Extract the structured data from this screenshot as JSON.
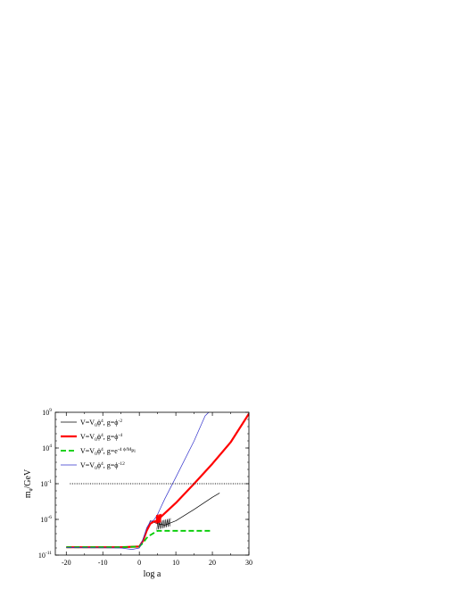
{
  "chart_data": {
    "type": "line",
    "xlabel": "log a",
    "ylabel": "m",
    "ylabel_subscript": "ϕ",
    "ylabel_unit": "/GeV",
    "xlim": [
      -23,
      30
    ],
    "ylim_log10": [
      -11,
      9
    ],
    "y_scale": "log",
    "grid": false,
    "legend_position": "top-left",
    "x_ticks": [
      -20,
      -10,
      0,
      10,
      20,
      30
    ],
    "x_tick_labels": [
      "-20",
      "-10",
      "0",
      "10",
      "20",
      "30"
    ],
    "y_ticks_log10": [
      -11,
      -6,
      -1,
      4,
      9
    ],
    "y_tick_labels": [
      {
        "base": "10",
        "exp": "-11"
      },
      {
        "base": "10",
        "exp": "-6"
      },
      {
        "base": "10",
        "exp": "-1"
      },
      {
        "base": "10",
        "exp": "4"
      },
      {
        "base": "10",
        "exp": "9"
      }
    ],
    "series": [
      {
        "legend": {
          "v": "V=V",
          "v_sub": "0",
          "phi": "ϕ",
          "phi_exp": "4",
          "g": ", g=ϕ",
          "g_exp": "-2"
        },
        "color": "#000000",
        "style": "solid-thin",
        "points_log10": [
          [
            -20,
            -9.9
          ],
          [
            -5,
            -9.9
          ],
          [
            0,
            -9.75
          ],
          [
            1,
            -9.0
          ],
          [
            2,
            -7.5
          ],
          [
            3,
            -6.2
          ],
          [
            5,
            -6.6
          ],
          [
            7,
            -6.8
          ],
          [
            10,
            -6.2
          ],
          [
            15,
            -4.6
          ],
          [
            20,
            -2.9
          ],
          [
            22,
            -2.3
          ]
        ]
      },
      {
        "legend": {
          "v": "V=V",
          "v_sub": "0",
          "phi": "ϕ",
          "phi_exp": "4",
          "g": ", g=ϕ",
          "g_exp": "-4"
        },
        "color": "#ff0000",
        "style": "solid-thick",
        "points_log10": [
          [
            -20,
            -9.9
          ],
          [
            -5,
            -9.9
          ],
          [
            0,
            -9.8
          ],
          [
            1,
            -9.0
          ],
          [
            2,
            -7.6
          ],
          [
            3,
            -6.6
          ],
          [
            4,
            -6.3
          ],
          [
            5,
            -6.2
          ],
          [
            6,
            -5.6
          ],
          [
            10,
            -3.7
          ],
          [
            15,
            -1.0
          ],
          [
            20,
            1.8
          ],
          [
            25,
            4.8
          ],
          [
            30,
            8.8
          ]
        ]
      },
      {
        "legend": {
          "v": "V=V",
          "v_sub": "0",
          "phi": "ϕ",
          "phi_exp": "4",
          "g": ", g=e",
          "g_exp": "-4 ϕ/M",
          "g_exp_sub": "Pl"
        },
        "color": "#00cc00",
        "style": "dashed-thick",
        "points_log10": [
          [
            -20,
            -9.9
          ],
          [
            -5,
            -9.9
          ],
          [
            0,
            -9.8
          ],
          [
            1,
            -9.3
          ],
          [
            2,
            -8.6
          ],
          [
            3,
            -8.2
          ],
          [
            4,
            -7.9
          ],
          [
            5,
            -7.6
          ],
          [
            10,
            -7.6
          ],
          [
            15,
            -7.6
          ],
          [
            20,
            -7.6
          ]
        ]
      },
      {
        "legend": {
          "v": "V=V",
          "v_sub": "0",
          "phi": "ϕ",
          "phi_exp": "4",
          "g": ", g=ϕ",
          "g_exp": "-12"
        },
        "color": "#3333cc",
        "style": "solid-thin",
        "points_log10": [
          [
            -20,
            -9.95
          ],
          [
            -5,
            -10.0
          ],
          [
            -2,
            -10.2
          ],
          [
            0,
            -10.0
          ],
          [
            1,
            -8.8
          ],
          [
            2,
            -7.2
          ],
          [
            3,
            -6.3
          ],
          [
            4,
            -6.1
          ],
          [
            5,
            -5.3
          ],
          [
            7,
            -3.1
          ],
          [
            10,
            -0.1
          ],
          [
            15,
            5.0
          ],
          [
            18,
            8.5
          ],
          [
            19,
            9.0
          ]
        ]
      },
      {
        "legend": null,
        "color": "#000000",
        "style": "dotted-thin",
        "points_log10": [
          [
            -19,
            -1.0
          ],
          [
            30,
            -1.0
          ]
        ]
      }
    ]
  }
}
